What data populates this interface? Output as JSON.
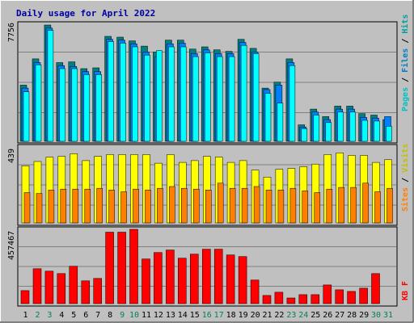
{
  "chart_data": {
    "type": "bar",
    "title": "Daily usage for April 2022",
    "categories": [
      "1",
      "2",
      "3",
      "4",
      "5",
      "6",
      "7",
      "8",
      "9",
      "10",
      "11",
      "12",
      "13",
      "14",
      "15",
      "16",
      "17",
      "18",
      "19",
      "20",
      "21",
      "22",
      "23",
      "24",
      "25",
      "26",
      "27",
      "28",
      "29",
      "30",
      "31"
    ],
    "weekend_days": [
      "2",
      "3",
      "9",
      "10",
      "16",
      "17",
      "23",
      "24",
      "30",
      "31"
    ],
    "panels": [
      {
        "name": "hits-files-pages",
        "ymax_label": "7756",
        "ymax": 7756,
        "labels": [
          "Pages",
          "Files",
          "Hits"
        ],
        "series": [
          {
            "name": "Hits",
            "values": [
              3750,
              5500,
              7756,
              5250,
              5300,
              4850,
              4900,
              7000,
              6950,
              6700,
              6350,
              5950,
              6750,
              6750,
              6150,
              6300,
              6100,
              6000,
              6800,
              6200,
              3550,
              3950,
              5500,
              1100,
              2150,
              1650,
              2350,
              2350,
              1850,
              1750,
              1450
            ]
          },
          {
            "name": "Files",
            "values": [
              3550,
              5250,
              7550,
              5050,
              5000,
              4650,
              4650,
              6800,
              6750,
              6500,
              5950,
              5650,
              6500,
              6550,
              5850,
              6100,
              5850,
              5850,
              6600,
              5950,
              3450,
              3750,
              5250,
              950,
              1950,
              1450,
              2150,
              2150,
              1600,
              1550,
              1650
            ]
          },
          {
            "name": "Pages",
            "values": [
              3300,
              5100,
              7400,
              4850,
              4850,
              4450,
              4450,
              6650,
              6550,
              6300,
              5750,
              6050,
              6300,
              6300,
              5650,
              5900,
              5650,
              5650,
              6400,
              5850,
              3200,
              2550,
              5050,
              850,
              1750,
              1250,
              1950,
              1950,
              1400,
              1350,
              1000
            ]
          }
        ]
      },
      {
        "name": "visits-sites",
        "ymax_label": "439",
        "ymax": 439,
        "labels": [
          "Sites",
          "Visits"
        ],
        "series": [
          {
            "name": "Visits",
            "values": [
              330,
              355,
              380,
              385,
              400,
              360,
              385,
              395,
              395,
              395,
              395,
              345,
              395,
              350,
              360,
              385,
              380,
              350,
              360,
              305,
              265,
              310,
              315,
              325,
              340,
              395,
              405,
              390,
              390,
              350,
              365
            ]
          },
          {
            "name": "Sites",
            "values": [
              175,
              170,
              190,
              195,
              195,
              195,
              200,
              190,
              180,
              195,
              190,
              200,
              210,
              200,
              195,
              190,
              230,
              200,
              200,
              210,
              190,
              190,
              200,
              185,
              175,
              195,
              205,
              205,
              230,
              180,
              200
            ]
          }
        ]
      },
      {
        "name": "kbytes",
        "ymax_label": "457467",
        "ymax": 457467,
        "labels": [
          "KB F"
        ],
        "series": [
          {
            "name": "KB F",
            "values": [
              80000,
              215000,
              200000,
              185000,
              230000,
              140000,
              155000,
              440000,
              440000,
              457467,
              275000,
              315000,
              330000,
              280000,
              305000,
              335000,
              335000,
              300000,
              290000,
              145000,
              50000,
              70000,
              35000,
              55000,
              55000,
              115000,
              85000,
              75000,
              95000,
              185000,
              0
            ]
          }
        ]
      }
    ],
    "colors": {
      "background": "#C0C0C0",
      "title": "#0000A0",
      "hits": "#00FFFF",
      "hits_shadow": "#008080",
      "files": "#33D3E3",
      "files_shadow": "#006060",
      "pages": "#0080FF",
      "visits": "#FFFF00",
      "sites": "#FF8000",
      "kbytes": "#FF0000",
      "weekend": "#00805C",
      "axis_text": "#000000"
    }
  }
}
